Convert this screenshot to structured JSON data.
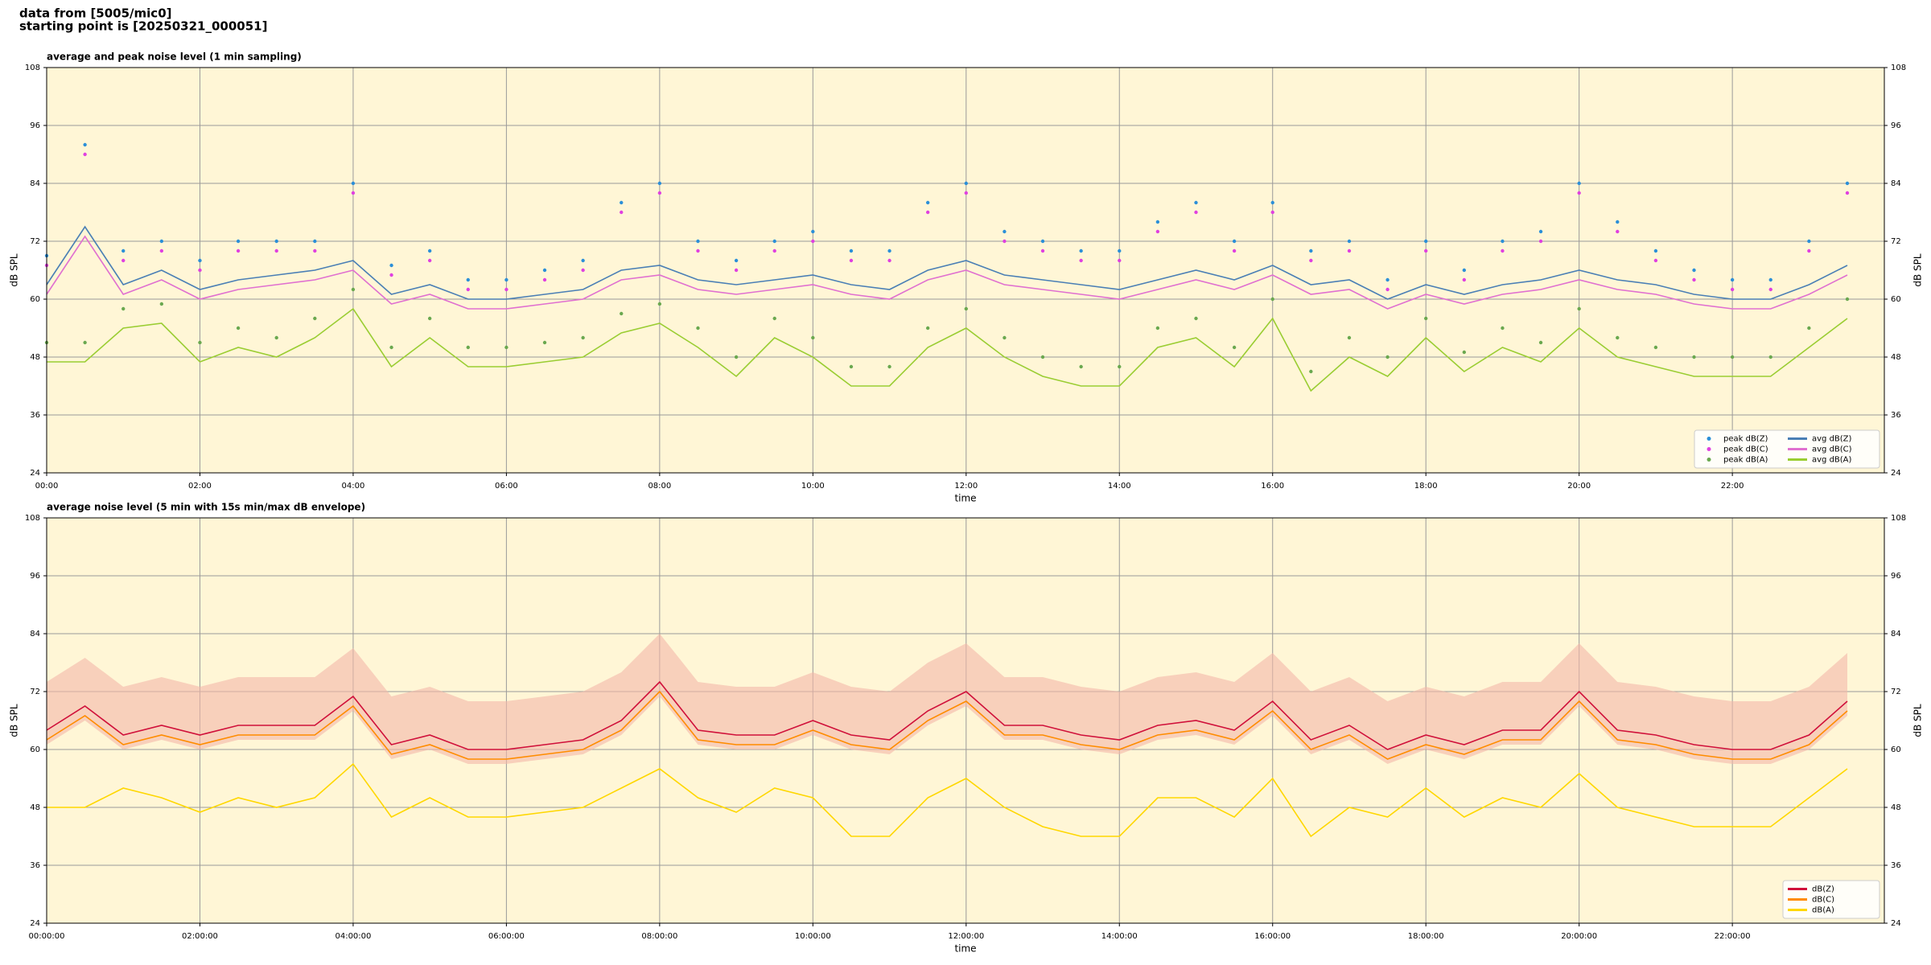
{
  "header": {
    "lines": [
      "data from [5005/mic0]",
      "starting point is [20250321_000051]"
    ]
  },
  "chart_data": [
    {
      "type": "line",
      "title": "average and peak noise level (1 min sampling)",
      "xlabel": "time",
      "ylabel": "dB SPL",
      "grid": true,
      "legend": "lower right",
      "legend_columns": 2,
      "xlim": [
        0,
        1439
      ],
      "ylim": [
        24,
        108
      ],
      "xticks": [
        {
          "value": 0,
          "label": "00:00"
        },
        {
          "value": 120,
          "label": "02:00"
        },
        {
          "value": 240,
          "label": "04:00"
        },
        {
          "value": 360,
          "label": "06:00"
        },
        {
          "value": 480,
          "label": "08:00"
        },
        {
          "value": 600,
          "label": "10:00"
        },
        {
          "value": 720,
          "label": "12:00"
        },
        {
          "value": 840,
          "label": "14:00"
        },
        {
          "value": 960,
          "label": "16:00"
        },
        {
          "value": 1080,
          "label": "18:00"
        },
        {
          "value": 1200,
          "label": "20:00"
        },
        {
          "value": 1320,
          "label": "22:00"
        }
      ],
      "yticks": [
        24,
        36,
        48,
        60,
        72,
        84,
        96,
        108
      ],
      "x": [
        0,
        30,
        60,
        90,
        120,
        150,
        180,
        210,
        240,
        270,
        300,
        330,
        360,
        390,
        420,
        450,
        480,
        510,
        540,
        570,
        600,
        630,
        660,
        690,
        720,
        750,
        780,
        810,
        840,
        870,
        900,
        930,
        960,
        990,
        1020,
        1050,
        1080,
        1110,
        1140,
        1170,
        1200,
        1230,
        1260,
        1290,
        1320,
        1350,
        1380,
        1410
      ],
      "series": [
        {
          "name": "peak dB(Z)",
          "color": "#2b8fd8",
          "style": "dots",
          "values": [
            69,
            92,
            70,
            72,
            68,
            72,
            72,
            72,
            84,
            67,
            70,
            64,
            64,
            66,
            68,
            80,
            84,
            72,
            68,
            72,
            74,
            70,
            70,
            80,
            84,
            74,
            72,
            70,
            70,
            76,
            80,
            72,
            80,
            70,
            72,
            64,
            72,
            66,
            72,
            74,
            84,
            76,
            70,
            66,
            64,
            64,
            72,
            84
          ]
        },
        {
          "name": "peak dB(C)",
          "color": "#e040e0",
          "style": "dots",
          "values": [
            67,
            90,
            68,
            70,
            66,
            70,
            70,
            70,
            82,
            65,
            68,
            62,
            62,
            64,
            66,
            78,
            82,
            70,
            66,
            70,
            72,
            68,
            68,
            78,
            82,
            72,
            70,
            68,
            68,
            74,
            78,
            70,
            78,
            68,
            70,
            62,
            70,
            64,
            70,
            72,
            82,
            74,
            68,
            64,
            62,
            62,
            70,
            82
          ]
        },
        {
          "name": "peak dB(A)",
          "color": "#6aa84f",
          "style": "dots",
          "values": [
            51,
            51,
            58,
            59,
            51,
            54,
            52,
            56,
            62,
            50,
            56,
            50,
            50,
            51,
            52,
            57,
            59,
            54,
            48,
            56,
            52,
            46,
            46,
            54,
            58,
            52,
            48,
            46,
            46,
            54,
            56,
            50,
            60,
            45,
            52,
            48,
            56,
            49,
            54,
            51,
            58,
            52,
            50,
            48,
            48,
            48,
            54,
            60
          ]
        },
        {
          "name": "avg dB(Z)",
          "color": "#4a7fb5",
          "style": "line",
          "values": [
            63,
            75,
            63,
            66,
            62,
            64,
            65,
            66,
            68,
            61,
            63,
            60,
            60,
            61,
            62,
            66,
            67,
            64,
            63,
            64,
            65,
            63,
            62,
            66,
            68,
            65,
            64,
            63,
            62,
            64,
            66,
            64,
            67,
            63,
            64,
            60,
            63,
            61,
            63,
            64,
            66,
            64,
            63,
            61,
            60,
            60,
            63,
            67
          ]
        },
        {
          "name": "avg dB(C)",
          "color": "#e070d0",
          "style": "line",
          "values": [
            61,
            73,
            61,
            64,
            60,
            62,
            63,
            64,
            66,
            59,
            61,
            58,
            58,
            59,
            60,
            64,
            65,
            62,
            61,
            62,
            63,
            61,
            60,
            64,
            66,
            63,
            62,
            61,
            60,
            62,
            64,
            62,
            65,
            61,
            62,
            58,
            61,
            59,
            61,
            62,
            64,
            62,
            61,
            59,
            58,
            58,
            61,
            65
          ]
        },
        {
          "name": "avg dB(A)",
          "color": "#9acd32",
          "style": "line",
          "values": [
            47,
            47,
            54,
            55,
            47,
            50,
            48,
            52,
            58,
            46,
            52,
            46,
            46,
            47,
            48,
            53,
            55,
            50,
            44,
            52,
            48,
            42,
            42,
            50,
            54,
            48,
            44,
            42,
            42,
            50,
            52,
            46,
            56,
            41,
            48,
            44,
            52,
            45,
            50,
            47,
            54,
            48,
            46,
            44,
            44,
            44,
            50,
            56
          ]
        }
      ]
    },
    {
      "type": "line",
      "title": "average noise level (5 min with 15s min/max dB envelope)",
      "xlabel": "time",
      "ylabel": "dB SPL",
      "grid": true,
      "legend": "lower right",
      "legend_columns": 1,
      "xlim": [
        0,
        1439
      ],
      "ylim": [
        24,
        108
      ],
      "xticks": [
        {
          "value": 0,
          "label": "00:00:00"
        },
        {
          "value": 120,
          "label": "02:00:00"
        },
        {
          "value": 240,
          "label": "04:00:00"
        },
        {
          "value": 360,
          "label": "06:00:00"
        },
        {
          "value": 480,
          "label": "08:00:00"
        },
        {
          "value": 600,
          "label": "10:00:00"
        },
        {
          "value": 720,
          "label": "12:00:00"
        },
        {
          "value": 840,
          "label": "14:00:00"
        },
        {
          "value": 960,
          "label": "16:00:00"
        },
        {
          "value": 1080,
          "label": "18:00:00"
        },
        {
          "value": 1200,
          "label": "20:00:00"
        },
        {
          "value": 1320,
          "label": "22:00:00"
        }
      ],
      "yticks": [
        24,
        36,
        48,
        60,
        72,
        84,
        96,
        108
      ],
      "x": [
        0,
        30,
        60,
        90,
        120,
        150,
        180,
        210,
        240,
        270,
        300,
        330,
        360,
        390,
        420,
        450,
        480,
        510,
        540,
        570,
        600,
        630,
        660,
        690,
        720,
        750,
        780,
        810,
        840,
        870,
        900,
        930,
        960,
        990,
        1020,
        1050,
        1080,
        1110,
        1140,
        1170,
        1200,
        1230,
        1260,
        1290,
        1320,
        1350,
        1380,
        1410
      ],
      "envelope": {
        "color": "#f4b8a8",
        "upper": [
          74,
          79,
          73,
          75,
          73,
          75,
          75,
          75,
          81,
          71,
          73,
          70,
          70,
          71,
          72,
          76,
          84,
          74,
          73,
          73,
          76,
          73,
          72,
          78,
          82,
          75,
          75,
          73,
          72,
          75,
          76,
          74,
          80,
          72,
          75,
          70,
          73,
          71,
          74,
          74,
          82,
          74,
          73,
          71,
          70,
          70,
          73,
          80
        ],
        "lower": [
          61,
          66,
          60,
          62,
          60,
          62,
          62,
          62,
          68,
          58,
          60,
          57,
          57,
          58,
          59,
          63,
          71,
          61,
          60,
          60,
          63,
          60,
          59,
          65,
          69,
          62,
          62,
          60,
          59,
          62,
          63,
          61,
          67,
          59,
          62,
          57,
          60,
          58,
          61,
          61,
          69,
          61,
          60,
          58,
          57,
          57,
          60,
          67
        ]
      },
      "series": [
        {
          "name": "dB(Z)",
          "color": "#d0103a",
          "style": "line",
          "values": [
            64,
            69,
            63,
            65,
            63,
            65,
            65,
            65,
            71,
            61,
            63,
            60,
            60,
            61,
            62,
            66,
            74,
            64,
            63,
            63,
            66,
            63,
            62,
            68,
            72,
            65,
            65,
            63,
            62,
            65,
            66,
            64,
            70,
            62,
            65,
            60,
            63,
            61,
            64,
            64,
            72,
            64,
            63,
            61,
            60,
            60,
            63,
            70
          ]
        },
        {
          "name": "dB(C)",
          "color": "#ff8c00",
          "style": "line",
          "values": [
            62,
            67,
            61,
            63,
            61,
            63,
            63,
            63,
            69,
            59,
            61,
            58,
            58,
            59,
            60,
            64,
            72,
            62,
            61,
            61,
            64,
            61,
            60,
            66,
            70,
            63,
            63,
            61,
            60,
            63,
            64,
            62,
            68,
            60,
            63,
            58,
            61,
            59,
            62,
            62,
            70,
            62,
            61,
            59,
            58,
            58,
            61,
            68
          ]
        },
        {
          "name": "dB(A)",
          "color": "#ffd700",
          "style": "line",
          "values": [
            48,
            48,
            52,
            50,
            47,
            50,
            48,
            50,
            57,
            46,
            50,
            46,
            46,
            47,
            48,
            52,
            56,
            50,
            47,
            52,
            50,
            42,
            42,
            50,
            54,
            48,
            44,
            42,
            42,
            50,
            50,
            46,
            54,
            42,
            48,
            46,
            52,
            46,
            50,
            48,
            55,
            48,
            46,
            44,
            44,
            44,
            50,
            56
          ]
        }
      ]
    }
  ]
}
